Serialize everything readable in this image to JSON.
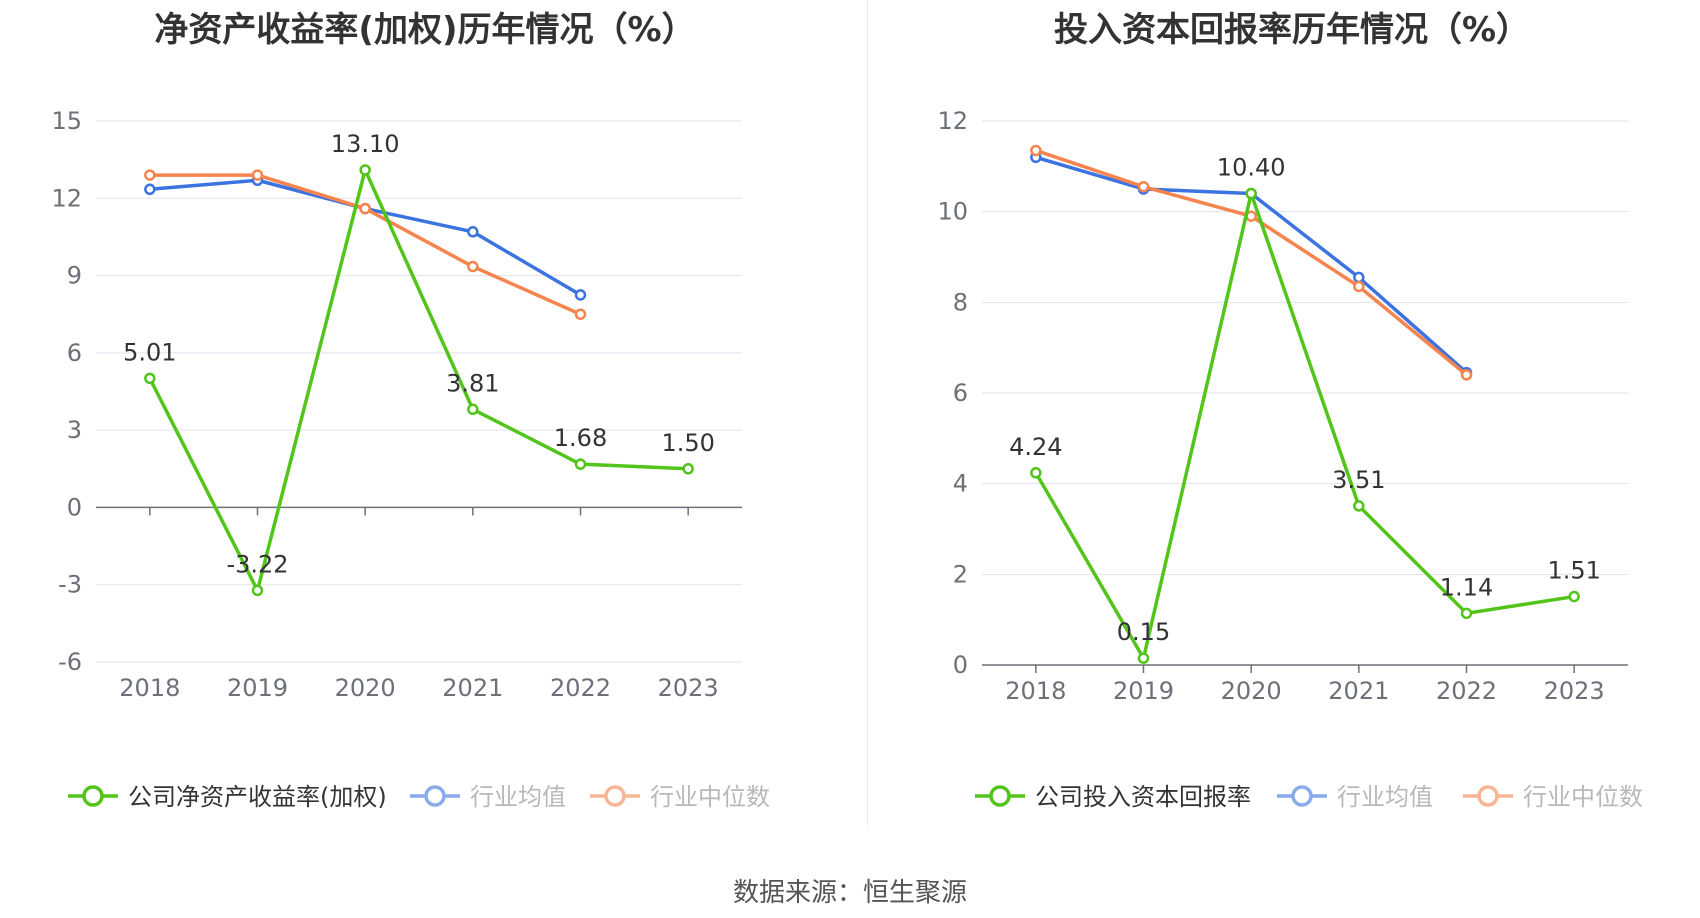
{
  "source": "数据来源：恒生聚源",
  "colors": {
    "company": "#52c41a",
    "avg": "#3b73e0",
    "median": "#f5844e"
  },
  "chart_data": [
    {
      "type": "line",
      "title": "净资产收益率(加权)历年情况（%）",
      "categories": [
        "2018",
        "2019",
        "2020",
        "2021",
        "2022",
        "2023"
      ],
      "ylim": [
        -6,
        15
      ],
      "yticks": [
        -6,
        -3,
        0,
        3,
        6,
        9,
        12,
        15
      ],
      "grid": true,
      "legend_position": "bottom",
      "series": [
        {
          "name": "公司净资产收益率(加权)",
          "key": "company",
          "values": [
            5.01,
            -3.22,
            13.1,
            3.81,
            1.68,
            1.5
          ],
          "labels": [
            "5.01",
            "-3.22",
            "13.10",
            "3.81",
            "1.68",
            "1.50"
          ]
        },
        {
          "name": "行业均值",
          "key": "avg",
          "values": [
            12.35,
            12.7,
            11.6,
            10.7,
            8.25,
            null
          ]
        },
        {
          "name": "行业中位数",
          "key": "median",
          "values": [
            12.9,
            12.9,
            11.6,
            9.35,
            7.5,
            null
          ]
        }
      ]
    },
    {
      "type": "line",
      "title": "投入资本回报率历年情况（%）",
      "categories": [
        "2018",
        "2019",
        "2020",
        "2021",
        "2022",
        "2023"
      ],
      "ylim": [
        0,
        12
      ],
      "yticks": [
        0,
        2,
        4,
        6,
        8,
        10,
        12
      ],
      "grid": true,
      "legend_position": "bottom",
      "series": [
        {
          "name": "公司投入资本回报率",
          "key": "company",
          "values": [
            4.24,
            0.15,
            10.4,
            3.51,
            1.14,
            1.51
          ],
          "labels": [
            "4.24",
            "0.15",
            "10.40",
            "3.51",
            "1.14",
            "1.51"
          ]
        },
        {
          "name": "行业均值",
          "key": "avg",
          "values": [
            11.2,
            10.5,
            10.4,
            8.55,
            6.45,
            null
          ]
        },
        {
          "name": "行业中位数",
          "key": "median",
          "values": [
            11.35,
            10.55,
            9.9,
            8.35,
            6.4,
            null
          ]
        }
      ]
    }
  ]
}
